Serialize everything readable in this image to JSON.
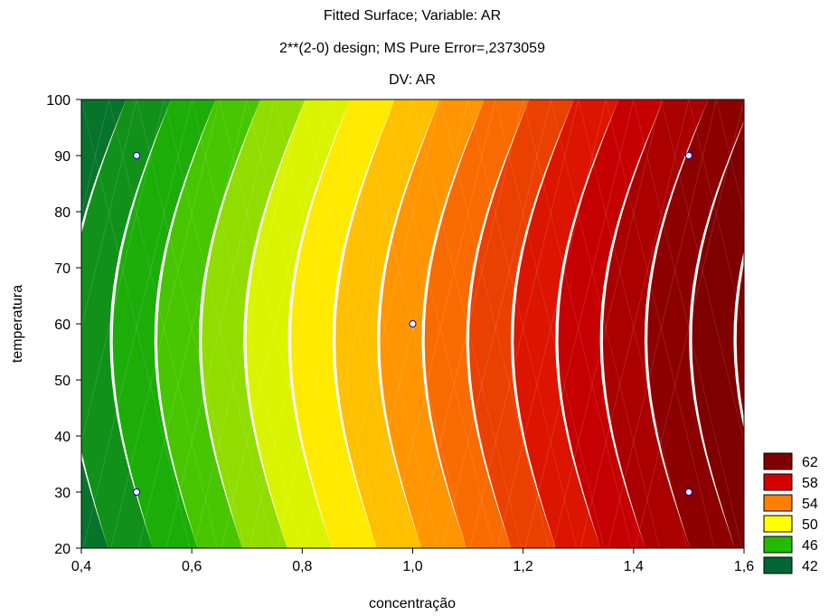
{
  "chart_data": {
    "type": "contour",
    "title": "Fitted Surface; Variable: AR",
    "subtitle": "2**(2-0) design; MS Pure Error=,2373059",
    "subtitle2": "DV: AR",
    "xlabel": "concentração",
    "ylabel": "temperatura",
    "xlim": [
      0.4,
      1.6
    ],
    "ylim": [
      20,
      100
    ],
    "x_ticks": [
      "0,4",
      "0,6",
      "0,8",
      "1,0",
      "1,2",
      "1,4",
      "1,6"
    ],
    "y_ticks": [
      "20",
      "30",
      "40",
      "50",
      "60",
      "70",
      "80",
      "90",
      "100"
    ],
    "x_tick_values": [
      0.4,
      0.6,
      0.8,
      1.0,
      1.2,
      1.4,
      1.6
    ],
    "y_tick_values": [
      20,
      30,
      40,
      50,
      60,
      70,
      80,
      90,
      100
    ],
    "design_points": [
      {
        "x": 0.5,
        "y": 90
      },
      {
        "x": 0.5,
        "y": 30
      },
      {
        "x": 1.0,
        "y": 60
      },
      {
        "x": 1.5,
        "y": 90
      },
      {
        "x": 1.5,
        "y": 30
      }
    ],
    "legend": [
      {
        "label": "62",
        "color": "#7f0000"
      },
      {
        "label": "58",
        "color": "#d40000"
      },
      {
        "label": "54",
        "color": "#ff8000"
      },
      {
        "label": "50",
        "color": "#ffff00"
      },
      {
        "label": "46",
        "color": "#22bb00"
      },
      {
        "label": "42",
        "color": "#006633"
      }
    ],
    "legend_placement": "bottom-right",
    "grid": false
  }
}
